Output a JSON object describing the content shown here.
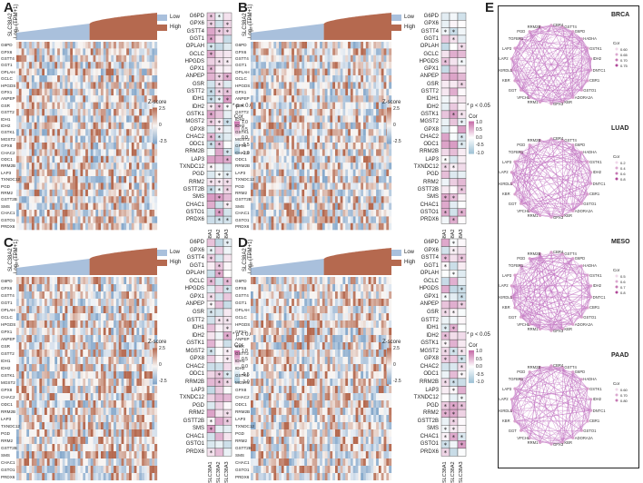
{
  "panels": [
    {
      "label": "A"
    },
    {
      "label": "B"
    },
    {
      "label": "C"
    },
    {
      "label": "D"
    }
  ],
  "panel_e": {
    "label": "E"
  },
  "axis": {
    "ylabel_line1": "SLC38A2",
    "ylabel_line2": "Log₂ (TPM+1)"
  },
  "groups": {
    "low": "Low",
    "high": "High"
  },
  "genes": [
    "G6PD",
    "GPX6",
    "GSTT4",
    "GGT1",
    "OPLAH",
    "GCLC",
    "HPGDS",
    "GPX1",
    "ANPEP",
    "GSR",
    "GSTT2",
    "IDH1",
    "IDH2",
    "GSTK1",
    "MGST2",
    "GPX8",
    "CHAC2",
    "ODC1",
    "RRM2B",
    "LAP3",
    "TXNDC12",
    "PGD",
    "RRM2",
    "GSTT2B",
    "SMS",
    "CHAC1",
    "GSTO1",
    "PRDX6"
  ],
  "corr_columns": [
    "SLC38A1",
    "SLC38A2",
    "SLC38A3"
  ],
  "significance_note": "* p < 0.05",
  "zscore_legend": {
    "title": "Z-score",
    "ticks_ab": [
      "2.5",
      "0",
      "-2.5"
    ],
    "ticks_c": [
      "2.5",
      "0",
      "-2.5"
    ]
  },
  "cor_legend": {
    "title": "Cor",
    "ticks": [
      "1.0",
      "0.5",
      "0.0",
      "-0.5",
      "-1.0"
    ]
  },
  "networks": [
    {
      "title": "BRCA"
    },
    {
      "title": "LUAD"
    },
    {
      "title": "MESO"
    },
    {
      "title": "PAAD"
    }
  ],
  "network_nodes": [
    "CBR4",
    "GSTT4",
    "G6PD",
    "HADHA",
    "GSTK1",
    "IDH2",
    "DNTC1",
    "CBR1",
    "GSTO1",
    "ADORA2A",
    "KBR",
    "GPX3",
    "RRM1",
    "VPCHL",
    "GGT",
    "KBR",
    "KIRDL1",
    "LAP2",
    "LAP3",
    "TGFBR1",
    "PGD",
    "RRM2B",
    "ODC1",
    "GSR"
  ],
  "network_legend": {
    "title": "Cor",
    "ticks_brca": [
      "0.60",
      "0.65",
      "0.70",
      "0.75"
    ],
    "ticks_luad": [
      "0.2",
      "0.4",
      "0.6",
      "0.8"
    ],
    "ticks_meso": [
      "0.5",
      "0.6",
      "0.7",
      "0.8"
    ],
    "ticks_paad": [
      "0.60",
      "0.70",
      "0.80"
    ]
  },
  "colors": {
    "low": "#a9c0dc",
    "high": "#b5694f",
    "heat_pos": "#b5694f",
    "heat_neg": "#7ea3c8",
    "cor_pos": "#c66aa6",
    "cor_neg": "#9cc0d4",
    "edge": "#c070c0",
    "star": "#222222"
  }
}
